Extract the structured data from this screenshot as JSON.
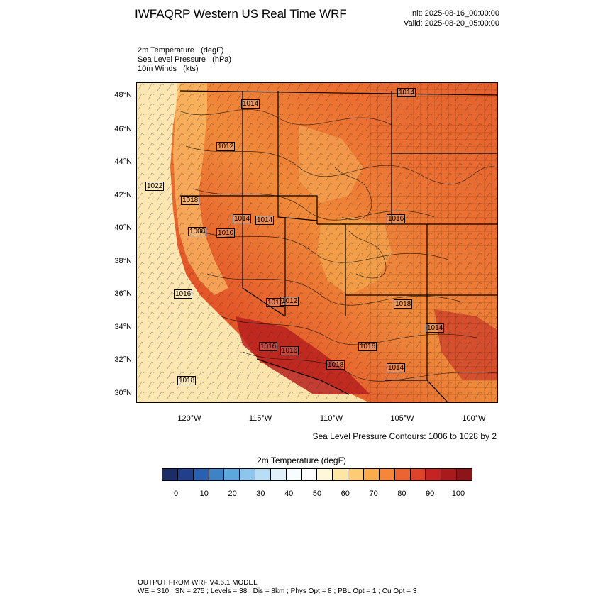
{
  "header": {
    "title": "IWFAQRP Western US Real Time WRF",
    "init": "Init: 2025-08-16_00:00:00",
    "valid": "Valid: 2025-08-20_05:00:00"
  },
  "fields": {
    "temp": "2m Temperature   (degF)",
    "slp": "Sea Level Pressure   (hPa)",
    "wind": "10m Winds   (kts)"
  },
  "map": {
    "lat_labels": [
      "48°N",
      "46°N",
      "44°N",
      "42°N",
      "40°N",
      "38°N",
      "36°N",
      "34°N",
      "32°N",
      "30°N"
    ],
    "lon_labels": [
      "120°W",
      "115°W",
      "110°W",
      "105°W",
      "100°W"
    ],
    "isobar_labels": [
      "1014",
      "1014",
      "1012",
      "1022",
      "1018",
      "1014",
      "1008",
      "1010",
      "1014",
      "1016",
      "1016",
      "1014",
      "1014",
      "1018",
      "1016",
      "1018",
      "1012",
      "1016",
      "1016",
      "1014",
      "1018"
    ]
  },
  "notes": {
    "contours": "Sea Level Pressure Contours: 1006 to 1028 by 2"
  },
  "colorbar": {
    "title": "2m Temperature  (degF)",
    "colors": [
      "#1c2c66",
      "#223f8c",
      "#2a60b0",
      "#3d83c6",
      "#5ea7dc",
      "#8dc6ec",
      "#b8def5",
      "#dff0fb",
      "#f7fcff",
      "#ffffff",
      "#fff6dc",
      "#fee6a6",
      "#fdcb73",
      "#fbaa4c",
      "#f6873a",
      "#ec6530",
      "#dd4429",
      "#c52522",
      "#a81a1c",
      "#8b1519"
    ],
    "ticks": [
      "0",
      "10",
      "20",
      "30",
      "40",
      "50",
      "60",
      "70",
      "80",
      "90",
      "100"
    ]
  },
  "footer": {
    "line1": "OUTPUT FROM WRF V4.6.1 MODEL",
    "line2": "WE = 310 ; SN = 275 ; Levels = 38 ; Dis = 8km ; Phys Opt = 8 ; PBL Opt = 1 ; Cu Opt = 3"
  }
}
